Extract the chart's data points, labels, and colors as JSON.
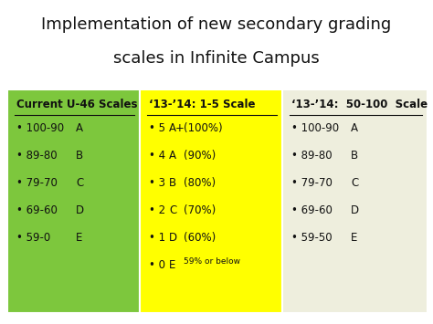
{
  "title_line1": "Implementation of new secondary grading",
  "title_line2": "scales in Infinite Campus",
  "title_fontsize": 13,
  "col1_bg": "#7DC73D",
  "col2_bg": "#FFFF00",
  "col3_bg": "#EEEEDD",
  "col1_header": "Current U-46 Scales",
  "col2_header": "‘13-’14: 1-5 Scale",
  "col3_header": "‘13-’14:  50-100  Scale",
  "col1_items": [
    [
      "100-90",
      "A"
    ],
    [
      "89-80",
      "B"
    ],
    [
      "79-70",
      "C"
    ],
    [
      "69-60",
      "D"
    ],
    [
      "59-0",
      "E"
    ]
  ],
  "col2_items": [
    [
      "5",
      "A+",
      "(100%)"
    ],
    [
      "4",
      "A",
      "(90%)"
    ],
    [
      "3",
      "B",
      "(80%)"
    ],
    [
      "2",
      "C",
      "(70%)"
    ],
    [
      "1",
      "D",
      "(60%)"
    ],
    [
      "0",
      "E",
      "59% or below"
    ]
  ],
  "col3_items": [
    [
      "100-90",
      "A"
    ],
    [
      "89-80",
      "B"
    ],
    [
      "79-70",
      "C"
    ],
    [
      "69-60",
      "D"
    ],
    [
      "59-50",
      "E"
    ]
  ],
  "header_fontsize": 8.5,
  "item_fontsize": 8.5,
  "small_fontsize": 6.5,
  "text_color": "#111111",
  "bullet": "•",
  "fig_width": 4.74,
  "fig_height": 3.55,
  "dpi": 100
}
